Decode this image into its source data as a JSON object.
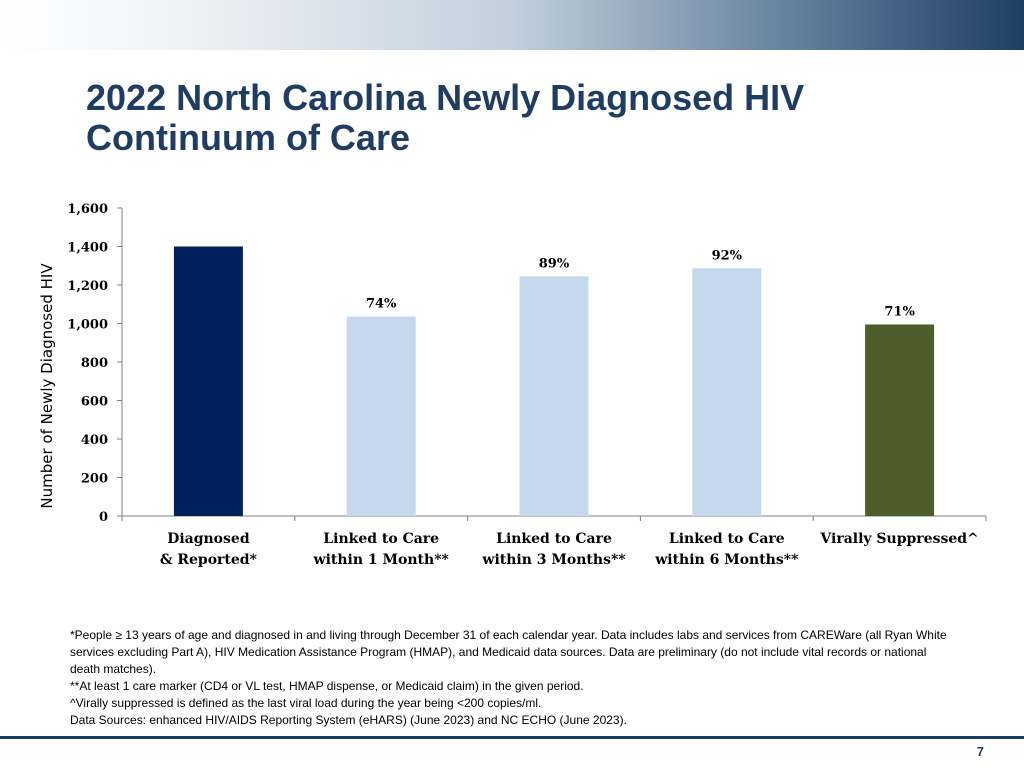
{
  "slide": {
    "title_line1": "2022 North Carolina Newly Diagnosed HIV",
    "title_line2": "Continuum of Care",
    "page_number": "7"
  },
  "footnotes": {
    "note1": "*People ≥ 13 years of age and diagnosed in and living through December 31 of each calendar year. Data includes labs and services from CAREWare (all Ryan White services excluding Part A), HIV Medication Assistance Program (HMAP), and Medicaid data sources. Data are preliminary (do not include vital records or national death matches).",
    "note2": "**At least 1 care marker (CD4 or VL test, HMAP dispense, or Medicaid claim) in the given period.",
    "note3": "^Virally suppressed is defined as the last viral load during the year being <200 copies/ml.",
    "note4": "Data Sources: enhanced HIV/AIDS Reporting System (eHARS) (June 2023) and NC ECHO (June 2023)."
  },
  "colors": {
    "diagnosed": "#00205b",
    "linked": "#c5d8ee",
    "suppressed": "#4d5e2a",
    "title": "#1f3d62"
  },
  "chart_data": {
    "type": "bar",
    "title": "",
    "xlabel": "",
    "ylabel": "Number of Newly Diagnosed HIV",
    "ylim": [
      0,
      1600
    ],
    "yticks": [
      0,
      200,
      400,
      600,
      800,
      1000,
      1200,
      1400,
      1600
    ],
    "ytick_labels": [
      "0",
      "200",
      "400",
      "600",
      "800",
      "1,000",
      "1,200",
      "1,400",
      "1,600"
    ],
    "categories": [
      [
        "Diagnosed",
        "& Reported*"
      ],
      [
        "Linked to Care",
        "within 1 Month**"
      ],
      [
        "Linked to Care",
        "within 3 Months**"
      ],
      [
        "Linked to Care",
        "within 6 Months**"
      ],
      [
        "Virally Suppressed^"
      ]
    ],
    "values": [
      1400,
      1036,
      1245,
      1287,
      995
    ],
    "data_labels": [
      "",
      "74%",
      "89%",
      "92%",
      "71%"
    ],
    "bar_colors": [
      "#00205b",
      "#c5d8ee",
      "#c5d8ee",
      "#c5d8ee",
      "#4d5e2a"
    ],
    "grid": false
  }
}
